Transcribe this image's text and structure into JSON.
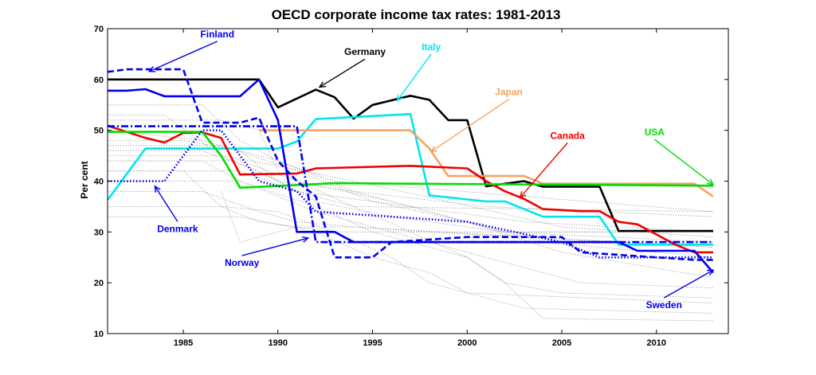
{
  "chart_data": {
    "type": "line",
    "title": "OECD corporate income tax rates: 1981-2013",
    "xlabel": "",
    "ylabel": "Per cent",
    "xlim": [
      1981,
      2013.8
    ],
    "ylim": [
      10,
      70
    ],
    "xticks": [
      1985,
      1990,
      1995,
      2000,
      2005,
      2010
    ],
    "yticks": [
      10,
      20,
      30,
      40,
      50,
      60,
      70
    ],
    "grid": false,
    "legend": "none",
    "highlighted_series": [
      {
        "name": "Germany",
        "color": "#000000",
        "dash": "solid",
        "x": [
          1981,
          1989,
          1990,
          1992,
          1993,
          1994,
          1995,
          1997,
          1998,
          1999,
          2000,
          2001,
          2003,
          2004,
          2007,
          2008,
          2013
        ],
        "y": [
          60,
          60,
          54.5,
          58,
          56.5,
          52.3,
          55,
          56.8,
          56,
          52,
          52,
          39,
          40,
          38.9,
          38.9,
          30.2,
          30.2
        ]
      },
      {
        "name": "Italy",
        "color": "#00e5ee",
        "dash": "solid",
        "x": [
          1981,
          1983,
          1990,
          1991,
          1992,
          1997,
          1998,
          2001,
          2002,
          2004,
          2007,
          2008,
          2013
        ],
        "y": [
          36.3,
          46.4,
          46.4,
          47.8,
          52.2,
          53.2,
          37.2,
          36,
          36,
          33,
          33,
          27.5,
          27.5
        ]
      },
      {
        "name": "Japan",
        "color": "#f4a460",
        "dash": "solid",
        "x": [
          1989,
          1990,
          1997,
          1998,
          1999,
          2003,
          2004,
          2012,
          2013
        ],
        "y": [
          50,
          50,
          50,
          46.4,
          41,
          41,
          39.5,
          39.5,
          37
        ]
      },
      {
        "name": "Canada",
        "color": "#ee0000",
        "dash": "solid",
        "x": [
          1981,
          1983,
          1984,
          1985,
          1986,
          1987,
          1988,
          1991,
          1992,
          1997,
          2000,
          2001,
          2002,
          2003,
          2004,
          2006,
          2007,
          2008,
          2009,
          2010,
          2011,
          2012,
          2013
        ],
        "y": [
          50.9,
          48.5,
          47.6,
          49.5,
          49.6,
          48.5,
          41.3,
          41.5,
          42.5,
          43,
          42.5,
          40,
          38,
          36.5,
          34.5,
          34.1,
          34.1,
          32,
          31.5,
          29.5,
          27.5,
          26,
          26
        ]
      },
      {
        "name": "USA",
        "color": "#00dd00",
        "dash": "solid",
        "x": [
          1981,
          1986,
          1987,
          1988,
          1993,
          2013
        ],
        "y": [
          49.7,
          49.7,
          45,
          38.7,
          39.6,
          39.1
        ]
      },
      {
        "name": "Finland",
        "color": "#0000ee",
        "dash": "dashed",
        "x": [
          1981,
          1982,
          1985,
          1986,
          1987,
          1988,
          1989,
          1990,
          1991,
          1992,
          1993,
          1995,
          1996,
          2000,
          2005,
          2006,
          2012,
          2013
        ],
        "y": [
          61.5,
          62,
          62,
          51.5,
          51.5,
          51.5,
          52.5,
          44,
          40,
          37,
          25,
          25,
          28,
          29,
          29,
          26,
          24.5,
          24.5
        ]
      },
      {
        "name": "Sweden",
        "color": "#0000ee",
        "dash": "solid",
        "x": [
          1981,
          1982,
          1983,
          1984,
          1988,
          1989,
          1990,
          1991,
          1993,
          1994,
          2008,
          2009,
          2012,
          2013
        ],
        "y": [
          57.8,
          57.8,
          58.1,
          56.7,
          56.7,
          60,
          52,
          30,
          30,
          28,
          28,
          26.3,
          26.3,
          22
        ]
      },
      {
        "name": "Norway",
        "color": "#0000ee",
        "dash": "dashdot",
        "x": [
          1981,
          1990,
          1991,
          1992,
          2013
        ],
        "y": [
          50.8,
          50.8,
          50.8,
          28,
          28
        ]
      },
      {
        "name": "Denmark",
        "color": "#0000ee",
        "dash": "dotted",
        "x": [
          1981,
          1983,
          1984,
          1986,
          1987,
          1989,
          1991,
          1992,
          2000,
          2005,
          2007,
          2008,
          2013
        ],
        "y": [
          40,
          40,
          40,
          50,
          50,
          40,
          38,
          34,
          32,
          28,
          25,
          25,
          25
        ]
      }
    ],
    "background_series": [
      {
        "x": [
          1981,
          1986,
          1988,
          1990,
          1993,
          2013
        ],
        "y": [
          55,
          55,
          48,
          44,
          40,
          34
        ]
      },
      {
        "x": [
          1981,
          1987,
          1989,
          1990,
          1991,
          1994,
          2013
        ],
        "y": [
          52,
          52,
          50,
          42,
          40,
          35,
          34
        ]
      },
      {
        "x": [
          1981,
          1985,
          1988,
          1990,
          1994,
          2001,
          2013
        ],
        "y": [
          48,
          48,
          46,
          40,
          38,
          35,
          33
        ]
      },
      {
        "x": [
          1981,
          1986,
          1989,
          1991,
          1995,
          2003,
          2013
        ],
        "y": [
          46,
          46,
          42,
          38,
          36,
          32,
          30
        ]
      },
      {
        "x": [
          1981,
          1987,
          1990,
          1992,
          1996,
          2002,
          2013
        ],
        "y": [
          45,
          45,
          40,
          36,
          33,
          30,
          30
        ]
      },
      {
        "x": [
          1981,
          1985,
          1987,
          1989,
          1993,
          2013
        ],
        "y": [
          42,
          42,
          35,
          32,
          30,
          30
        ]
      },
      {
        "x": [
          1981,
          1986,
          1990,
          1994,
          1998,
          2004,
          2013
        ],
        "y": [
          50,
          48,
          44,
          38,
          34,
          28,
          25
        ]
      },
      {
        "x": [
          1981,
          1987,
          1991,
          1995,
          2000,
          2005,
          2013
        ],
        "y": [
          47,
          47,
          42,
          36,
          32,
          26,
          21
        ]
      },
      {
        "x": [
          1981,
          1986,
          1988,
          1992,
          1996,
          2001,
          2006,
          2013
        ],
        "y": [
          44,
          44,
          40,
          34,
          30,
          25,
          20,
          19
        ]
      },
      {
        "x": [
          1981,
          1988,
          1992,
          1995,
          2000,
          2002,
          2005,
          2013
        ],
        "y": [
          40,
          40,
          35,
          30,
          25,
          20,
          18,
          17
        ]
      },
      {
        "x": [
          1981,
          1987,
          1990,
          1993,
          1996,
          1998,
          2000,
          2013
        ],
        "y": [
          35,
          35,
          34,
          30,
          25,
          20,
          18,
          16
        ]
      },
      {
        "x": [
          1981,
          1988,
          1992,
          1995,
          1998,
          2000,
          2003,
          2013
        ],
        "y": [
          33,
          33,
          30,
          25,
          22,
          18,
          15,
          14
        ]
      },
      {
        "x": [
          1981,
          1988,
          1991,
          1994,
          1997,
          2000,
          2002,
          2004,
          2013
        ],
        "y": [
          42,
          42,
          38,
          35,
          30,
          25,
          20,
          13,
          12.5
        ]
      },
      {
        "x": [
          1981,
          1984,
          1987,
          1990,
          1994,
          1999,
          2005,
          2013
        ],
        "y": [
          53,
          53,
          45,
          43,
          40,
          36,
          31,
          29
        ]
      },
      {
        "x": [
          1981,
          1986,
          1989,
          1991,
          1994,
          1998,
          2013
        ],
        "y": [
          38,
          38,
          34,
          32,
          31,
          30,
          27
        ]
      },
      {
        "x": [
          1987,
          1988,
          1990,
          1991,
          1994,
          2013
        ],
        "y": [
          38,
          28,
          30,
          31,
          31,
          27
        ]
      },
      {
        "x": [
          1981,
          1988,
          1991,
          1996,
          2002,
          2013
        ],
        "y": [
          44,
          44,
          40,
          36,
          30,
          28
        ]
      }
    ],
    "annotations": [
      {
        "text": "Finland",
        "color": "#0000ee",
        "tx": 1986.8,
        "ty": 68.3,
        "ax": 1983.2,
        "ay": 61.6
      },
      {
        "text": "Germany",
        "color": "#000000",
        "tx": 1994.6,
        "ty": 64.8,
        "ax": 1992.2,
        "ay": 58.5
      },
      {
        "text": "Italy",
        "color": "#00e5ee",
        "tx": 1998.1,
        "ty": 65.8,
        "ax": 1996.3,
        "ay": 55.8
      },
      {
        "text": "Japan",
        "color": "#f4a460",
        "tx": 2002.2,
        "ty": 56.9,
        "ax": 1998.1,
        "ay": 45.8
      },
      {
        "text": "Canada",
        "color": "#ee0000",
        "tx": 2005.3,
        "ty": 48.3,
        "ax": 2002.8,
        "ay": 36.8
      },
      {
        "text": "USA",
        "color": "#00dd00",
        "tx": 2009.9,
        "ty": 49.0,
        "ax": 2013.0,
        "ay": 39.3
      },
      {
        "text": "Denmark",
        "color": "#0000ee",
        "tx": 1984.7,
        "ty": 30.0,
        "ax": 1983.5,
        "ay": 39.0
      },
      {
        "text": "Norway",
        "color": "#0000ee",
        "tx": 1988.1,
        "ty": 23.3,
        "ax": 1991.6,
        "ay": 28.8
      },
      {
        "text": "Sweden",
        "color": "#0000ee",
        "tx": 2010.4,
        "ty": 15.0,
        "ax": 2013.0,
        "ay": 22.5
      }
    ]
  }
}
